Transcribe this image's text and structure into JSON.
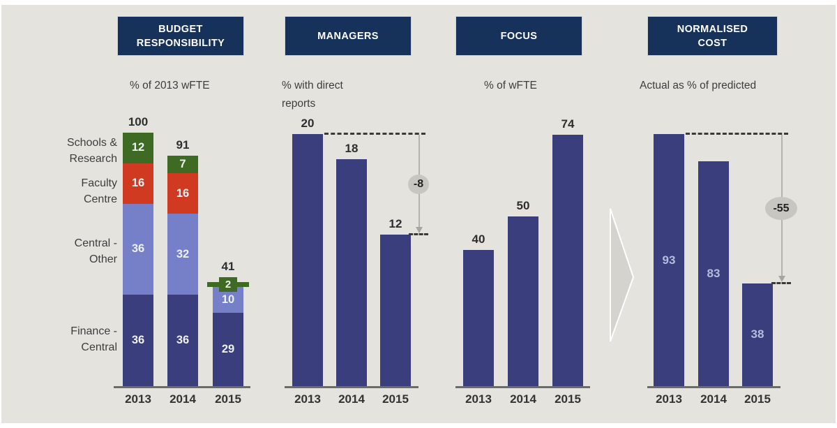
{
  "page": {
    "background": "#e4e3de",
    "frame": "#ffffff"
  },
  "colors": {
    "header_bg": "#16325a",
    "header_text": "#ffffff",
    "navy": "#3b3e7c",
    "periwinkle": "#7580c8",
    "red": "#cf3a21",
    "green": "#3e6a23",
    "value_text_dark": "#2e2e2e",
    "inbar_text_light": "#b4bcdf",
    "badge_bg": "#c7c6c1",
    "flow_arrow_gray": "#d4d3ce"
  },
  "years": [
    "2013",
    "2014",
    "2015"
  ],
  "panels": {
    "budget": {
      "header": "BUDGET\nRESPONSIBILITY",
      "subtitle": "% of 2013 wFTE",
      "category_labels": [
        "Schools &\nResearch",
        "Faculty\nCentre",
        "Central -\nOther",
        "Finance -\nCentral"
      ]
    },
    "managers": {
      "header": "MANAGERS",
      "subtitle": "% with direct\nreports",
      "delta_badge": "-8"
    },
    "focus": {
      "header": "FOCUS",
      "subtitle": "% of wFTE"
    },
    "normalised": {
      "header": "NORMALISED\nCOST",
      "subtitle": "Actual as % of predicted",
      "delta_badge": "-55"
    }
  },
  "chart_data": [
    {
      "type": "bar",
      "stacked": true,
      "title": "BUDGET RESPONSIBILITY",
      "subtitle": "% of 2013 wFTE",
      "categories": [
        "2013",
        "2014",
        "2015"
      ],
      "series": [
        {
          "name": "Finance - Central",
          "color": "#3b3e7c",
          "values": [
            36,
            36,
            29
          ]
        },
        {
          "name": "Central - Other",
          "color": "#7580c8",
          "values": [
            36,
            32,
            10
          ]
        },
        {
          "name": "Faculty Centre",
          "color": "#cf3a21",
          "values": [
            16,
            16,
            0
          ]
        },
        {
          "name": "Schools & Research",
          "color": "#3e6a23",
          "values": [
            12,
            7,
            2
          ]
        }
      ],
      "totals": [
        100,
        91,
        41
      ],
      "ylim": [
        0,
        100
      ],
      "legend_position": "left",
      "grid": false
    },
    {
      "type": "bar",
      "title": "MANAGERS",
      "subtitle": "% with direct reports",
      "categories": [
        "2013",
        "2014",
        "2015"
      ],
      "values": [
        20,
        18,
        12
      ],
      "annotation": {
        "label": "-8",
        "from": 20,
        "to": 12
      },
      "ylim": [
        0,
        20
      ],
      "grid": false
    },
    {
      "type": "bar",
      "title": "FOCUS",
      "subtitle": "% of wFTE",
      "categories": [
        "2013",
        "2014",
        "2015"
      ],
      "values": [
        40,
        50,
        74
      ],
      "ylim": [
        0,
        74
      ],
      "grid": false
    },
    {
      "type": "bar",
      "title": "NORMALISED COST",
      "subtitle": "Actual as % of predicted",
      "categories": [
        "2013",
        "2014",
        "2015"
      ],
      "values": [
        93,
        83,
        38
      ],
      "annotation": {
        "label": "-55",
        "from": 93,
        "to": 38
      },
      "value_label_position": "inside",
      "ylim": [
        0,
        100
      ],
      "grid": false
    }
  ]
}
